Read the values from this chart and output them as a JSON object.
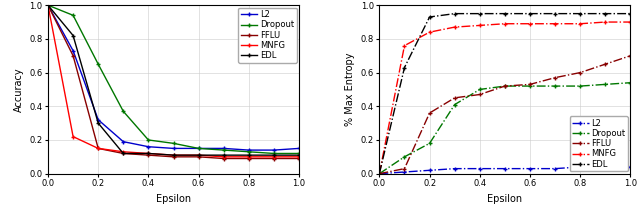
{
  "epsilon": [
    0.0,
    0.1,
    0.2,
    0.3,
    0.4,
    0.5,
    0.6,
    0.7,
    0.8,
    0.9,
    1.0
  ],
  "acc_L2": [
    1.0,
    0.73,
    0.32,
    0.19,
    0.16,
    0.15,
    0.15,
    0.15,
    0.14,
    0.14,
    0.15
  ],
  "acc_Dropout": [
    1.0,
    0.94,
    0.65,
    0.37,
    0.2,
    0.18,
    0.15,
    0.14,
    0.13,
    0.12,
    0.12
  ],
  "acc_FFLU": [
    1.0,
    0.7,
    0.15,
    0.12,
    0.11,
    0.1,
    0.1,
    0.09,
    0.09,
    0.09,
    0.09
  ],
  "acc_MNFG": [
    1.0,
    0.22,
    0.15,
    0.13,
    0.12,
    0.11,
    0.11,
    0.1,
    0.1,
    0.1,
    0.1
  ],
  "acc_EDL": [
    1.0,
    0.82,
    0.3,
    0.12,
    0.12,
    0.11,
    0.11,
    0.11,
    0.11,
    0.11,
    0.11
  ],
  "ent_L2": [
    0.0,
    0.01,
    0.02,
    0.03,
    0.03,
    0.03,
    0.03,
    0.03,
    0.04,
    0.04,
    0.04
  ],
  "ent_Dropout": [
    0.0,
    0.1,
    0.18,
    0.41,
    0.5,
    0.52,
    0.52,
    0.52,
    0.52,
    0.53,
    0.54
  ],
  "ent_FFLU": [
    0.0,
    0.03,
    0.36,
    0.45,
    0.47,
    0.52,
    0.53,
    0.57,
    0.6,
    0.65,
    0.7
  ],
  "ent_MNFG": [
    0.0,
    0.76,
    0.84,
    0.87,
    0.88,
    0.89,
    0.89,
    0.89,
    0.89,
    0.9,
    0.9
  ],
  "ent_EDL": [
    0.0,
    0.63,
    0.93,
    0.95,
    0.95,
    0.95,
    0.95,
    0.95,
    0.95,
    0.95,
    0.95
  ],
  "colors": {
    "L2": "#0000cc",
    "Dropout": "#007700",
    "FFLU": "#880000",
    "MNFG": "#ff0000",
    "EDL": "#000000"
  },
  "left_ylabel": "Accuracy",
  "left_xlabel": "Epsilon",
  "right_ylabel": "% Max Entropy",
  "right_xlabel": "Epsilon",
  "xlim": [
    0.0,
    1.0
  ],
  "left_ylim": [
    0.0,
    1.0
  ],
  "right_ylim": [
    0.0,
    1.0
  ],
  "yticks": [
    0.0,
    0.2,
    0.4,
    0.6,
    0.8,
    1.0
  ],
  "xticks": [
    0.0,
    0.2,
    0.4,
    0.6,
    0.8,
    1.0
  ],
  "marker": "+",
  "markersize": 3.5,
  "lw": 1.0,
  "fontsize_label": 7,
  "fontsize_tick": 6,
  "fontsize_legend": 6
}
